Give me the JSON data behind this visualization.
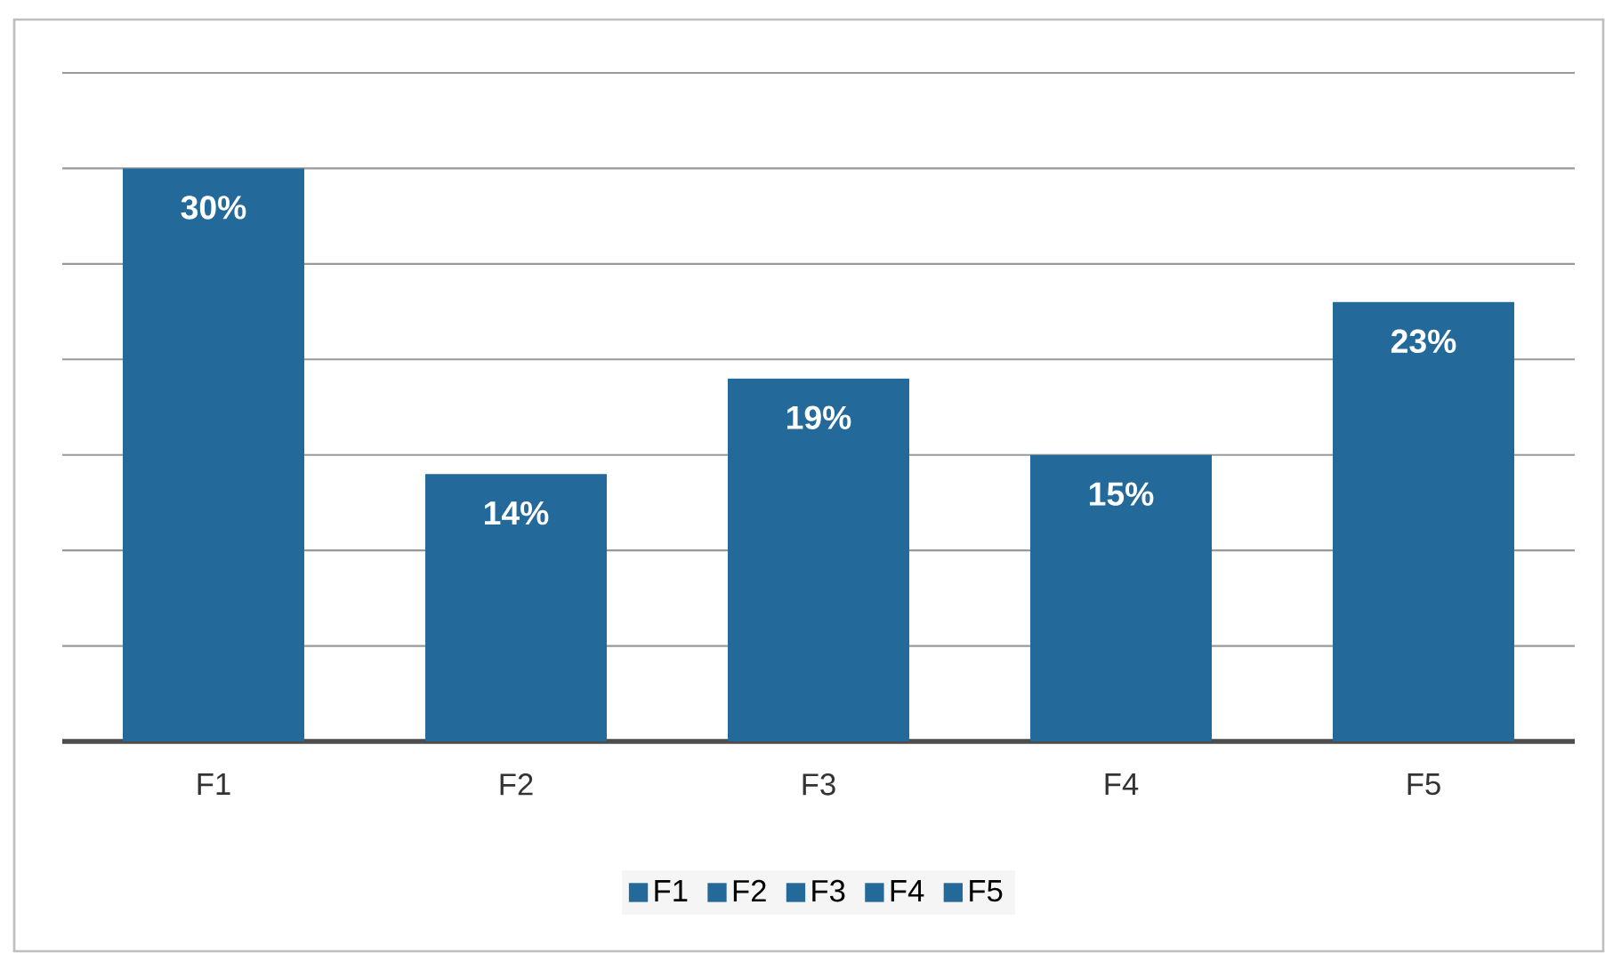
{
  "chart_data": {
    "type": "bar",
    "categories": [
      "F1",
      "F2",
      "F3",
      "F4",
      "F5"
    ],
    "series": [
      {
        "name": "F1",
        "color": "#236a9a",
        "values": [
          30,
          null,
          null,
          null,
          null
        ],
        "value_labels": [
          "30%",
          null,
          null,
          null,
          null
        ]
      },
      {
        "name": "F2",
        "color": "#236a9a",
        "values": [
          null,
          14,
          null,
          null,
          null
        ],
        "value_labels": [
          null,
          "14%",
          null,
          null,
          null
        ]
      },
      {
        "name": "F3",
        "color": "#236a9a",
        "values": [
          null,
          null,
          19,
          null,
          null
        ],
        "value_labels": [
          null,
          null,
          "19%",
          null,
          null
        ]
      },
      {
        "name": "F4",
        "color": "#236a9a",
        "values": [
          null,
          null,
          null,
          15,
          null
        ],
        "value_labels": [
          null,
          null,
          null,
          "15%",
          null
        ]
      },
      {
        "name": "F5",
        "color": "#236a9a",
        "values": [
          null,
          null,
          null,
          null,
          23
        ],
        "value_labels": [
          null,
          null,
          null,
          null,
          "23%"
        ]
      }
    ],
    "ylim": [
      0,
      35
    ],
    "yticks": [
      {
        "value": 0,
        "label": null
      },
      {
        "value": 5,
        "label": null
      },
      {
        "value": 10,
        "label": null
      },
      {
        "value": 15,
        "label": null
      },
      {
        "value": 20,
        "label": null
      },
      {
        "value": 25,
        "label": null
      },
      {
        "value": 30,
        "label": null
      },
      {
        "value": 35,
        "label": null
      }
    ],
    "grid": "y",
    "legend": "bottom",
    "tick_labels": "x"
  }
}
